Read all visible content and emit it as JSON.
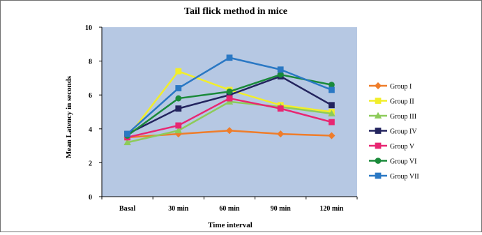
{
  "chart_data": {
    "type": "line",
    "title": "Tail flick method in mice",
    "xlabel": "Time interval",
    "ylabel": "Mean Latency in seconds",
    "categories": [
      "Basal",
      "30 min",
      "60 min",
      "90 min",
      "120 min"
    ],
    "ylim": [
      0,
      10
    ],
    "yticks": [
      0,
      2,
      4,
      6,
      8,
      10
    ],
    "grid": false,
    "plot_background": "#b6c8e3",
    "legend_position": "right",
    "series": [
      {
        "name": "Group I",
        "color": "#ef7d2a",
        "marker": "diamond",
        "values": [
          3.5,
          3.7,
          3.9,
          3.7,
          3.6
        ]
      },
      {
        "name": "Group II",
        "color": "#f2ee2a",
        "marker": "square",
        "values": [
          3.5,
          7.4,
          6.3,
          5.4,
          5.0
        ]
      },
      {
        "name": "Group III",
        "color": "#8dcb5a",
        "marker": "triangle",
        "values": [
          3.2,
          3.9,
          5.6,
          5.3,
          4.9
        ]
      },
      {
        "name": "Group IV",
        "color": "#23245e",
        "marker": "square",
        "values": [
          3.7,
          5.2,
          6.0,
          7.1,
          5.4
        ]
      },
      {
        "name": "Group V",
        "color": "#e82672",
        "marker": "square",
        "values": [
          3.5,
          4.2,
          5.8,
          5.2,
          4.4
        ]
      },
      {
        "name": "Group VI",
        "color": "#1a8a3a",
        "marker": "circle",
        "values": [
          3.6,
          5.8,
          6.2,
          7.2,
          6.6
        ]
      },
      {
        "name": "Group VII",
        "color": "#2a78c4",
        "marker": "square",
        "values": [
          3.7,
          6.4,
          8.2,
          7.5,
          6.3
        ]
      }
    ]
  }
}
